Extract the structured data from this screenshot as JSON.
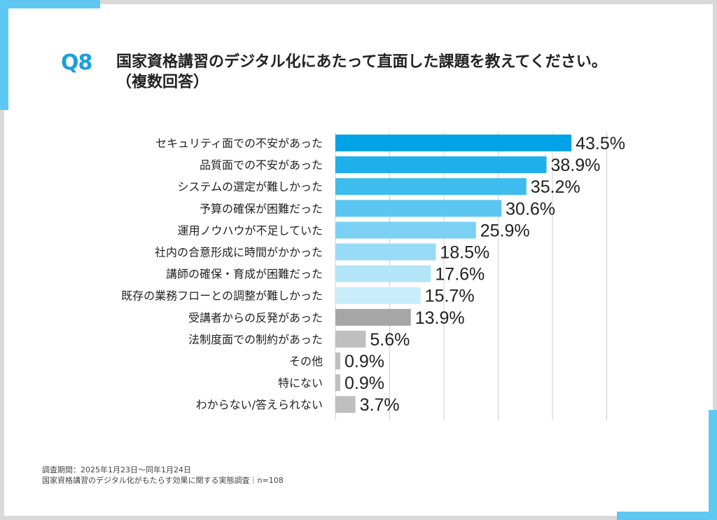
{
  "header": {
    "question_number": "Q8",
    "title": "国家資格講習のデジタル化にあたって直面した課題を教えてください。",
    "subtitle": "（複数回答）"
  },
  "footer": {
    "survey_period": "調査期間：2025年1月23日～同年1月24日",
    "survey_name": "国家資格講習のデジタル化がもたらす効果に関する実態調査｜n=108"
  },
  "colors": {
    "accent": "#5ec8f2",
    "frame": "#d9d9d9",
    "question_number": "#1aa0dc",
    "gridline": "#d0d0d0"
  },
  "chart_data": {
    "type": "bar",
    "orientation": "horizontal",
    "value_suffix": "%",
    "xlim": [
      0,
      50
    ],
    "grid": true,
    "categories": [
      "セキュリティ面での不安があった",
      "品質面での不安があった",
      "システムの選定が難しかった",
      "予算の確保が困難だった",
      "運用ノウハウが不足していた",
      "社内の合意形成に時間がかかった",
      "講師の確保・育成が困難だった",
      "既存の業務フローとの調整が難しかった",
      "受講者からの反発があった",
      "法制度面での制約があった",
      "その他",
      "特にない",
      "わからない/答えられない"
    ],
    "values": [
      43.5,
      38.9,
      35.2,
      30.6,
      25.9,
      18.5,
      17.6,
      15.7,
      13.9,
      5.6,
      0.9,
      0.9,
      3.7
    ],
    "value_labels": [
      "43.5%",
      "38.9%",
      "35.2%",
      "30.6%",
      "25.9%",
      "18.5%",
      "17.6%",
      "15.7%",
      "13.9%",
      "5.6%",
      "0.9%",
      "0.9%",
      "3.7%"
    ],
    "bar_colors": [
      "#00a3e6",
      "#1fb0ec",
      "#3dbcee",
      "#5ac6f1",
      "#7bd1f4",
      "#99dbf6",
      "#b3e4f8",
      "#c8ecfa",
      "#a6a6a6",
      "#bfbfbf",
      "#bfbfbf",
      "#bfbfbf",
      "#bfbfbf"
    ]
  }
}
